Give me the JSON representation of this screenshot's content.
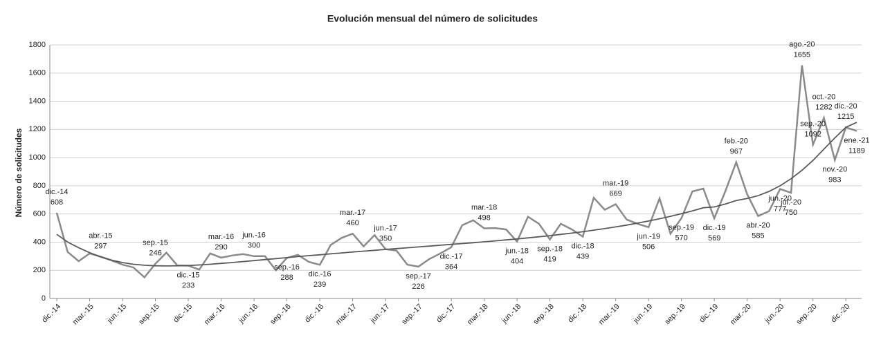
{
  "chart_data": {
    "type": "line",
    "title": "Evolución mensual del número de solicitudes",
    "y_label": "Número de solicitudes",
    "categories": [
      "dic.-14",
      null,
      null,
      "mar.-15",
      null,
      null,
      "jun.-15",
      null,
      null,
      "sep.-15",
      null,
      null,
      "dic.-15",
      null,
      null,
      "mar.-16",
      null,
      null,
      "jun.-16",
      null,
      null,
      "sep.-16",
      null,
      null,
      "dic.-16",
      null,
      null,
      "mar.-17",
      null,
      null,
      "jun.-17",
      null,
      null,
      "sep.-17",
      null,
      null,
      "dic.-17",
      null,
      null,
      "mar.-18",
      null,
      null,
      "jun.-18",
      null,
      null,
      "sep.-18",
      null,
      null,
      "dic.-18",
      null,
      null,
      "mar.-19",
      null,
      null,
      "jun.-19",
      null,
      null,
      "sep.-19",
      null,
      null,
      "dic.-19",
      null,
      null,
      "mar.-20",
      null,
      null,
      "jun.-20",
      null,
      null,
      "sep.-20",
      null,
      null,
      "dic.-20",
      null
    ],
    "point_labels": [
      "dic.-14",
      null,
      null,
      null,
      "abr.-15",
      null,
      null,
      null,
      null,
      "sep.-15",
      null,
      null,
      "dic.-15",
      null,
      null,
      "mar.-16",
      null,
      null,
      "jun.-16",
      null,
      null,
      "sep.-16",
      null,
      null,
      "dic.-16",
      null,
      null,
      "mar.-17",
      null,
      null,
      "jun.-17",
      null,
      null,
      "sep.-17",
      null,
      null,
      "dic.-17",
      null,
      null,
      "mar.-18",
      null,
      null,
      "jun.-18",
      null,
      null,
      "sep.-18",
      null,
      null,
      "dic.-18",
      null,
      null,
      "mar.-19",
      null,
      null,
      "jun.-19",
      null,
      null,
      "sep.-19",
      null,
      null,
      "dic.-19",
      null,
      "feb.-20",
      null,
      "abr.-20",
      null,
      "jun.-20",
      "jul.-20",
      "ago.-20",
      "sep.-20",
      "oct.-20",
      "nov.-20",
      "dic.-20",
      "ene.-21"
    ],
    "series": [
      {
        "color": "#8a8a8a",
        "values": [
          608,
          330,
          265,
          320,
          297,
          270,
          240,
          220,
          150,
          246,
          325,
          235,
          233,
          205,
          320,
          290,
          305,
          315,
          300,
          300,
          200,
          288,
          310,
          260,
          239,
          380,
          430,
          460,
          370,
          450,
          350,
          340,
          240,
          226,
          280,
          320,
          364,
          520,
          555,
          498,
          500,
          490,
          404,
          580,
          530,
          419,
          530,
          490,
          439,
          715,
          630,
          669,
          560,
          530,
          506,
          710,
          460,
          570,
          760,
          780,
          569,
          760,
          967,
          740,
          585,
          620,
          777,
          750,
          1655,
          1092,
          1282,
          983,
          1215,
          1189
        ]
      },
      {
        "color": "#5a5a5a",
        "values": [
          455,
          400,
          360,
          325,
          295,
          272,
          255,
          243,
          236,
          232,
          231,
          232,
          234,
          238,
          243,
          249,
          255,
          262,
          269,
          276,
          283,
          290,
          297,
          304,
          310,
          317,
          323,
          330,
          336,
          342,
          348,
          354,
          360,
          366,
          372,
          378,
          384,
          390,
          396,
          402,
          409,
          416,
          423,
          430,
          438,
          446,
          455,
          464,
          474,
          485,
          496,
          508,
          521,
          535,
          550,
          566,
          583,
          602,
          622,
          644,
          650,
          670,
          695,
          710,
          730,
          760,
          800,
          850,
          910,
          980,
          1060,
          1140,
          1215,
          1250
        ]
      }
    ],
    "ylim": [
      0,
      1800
    ],
    "yticks": [
      0,
      200,
      400,
      600,
      800,
      1000,
      1200,
      1400,
      1600,
      1800
    ],
    "grid": true
  }
}
